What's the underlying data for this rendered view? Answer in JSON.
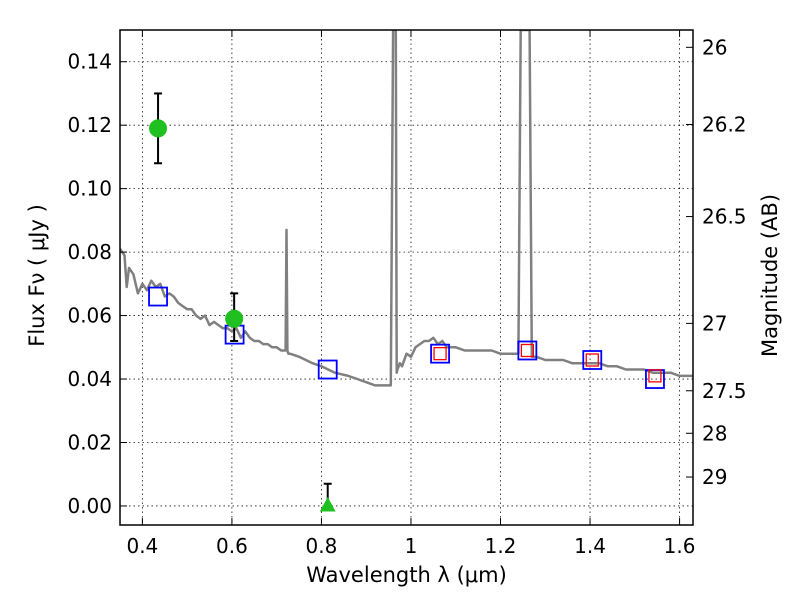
{
  "chart_data": {
    "type": "scatter",
    "xlabel": "Wavelength  λ (μm)",
    "ylabel": "Flux  Fν  ( μJy )",
    "ylabel_right": "Magnitude (AB)",
    "xlim": [
      0.35,
      1.63
    ],
    "ylim": [
      -0.006,
      0.15
    ],
    "x_ticks": [
      0.4,
      0.6,
      0.8,
      1.0,
      1.2,
      1.4,
      1.6
    ],
    "x_tick_labels": [
      "0.4",
      "0.6",
      "0.8",
      "1",
      "1.2",
      "1.4",
      "1.6"
    ],
    "y_ticks": [
      0.0,
      0.02,
      0.04,
      0.06,
      0.08,
      0.1,
      0.12,
      0.14
    ],
    "y_tick_labels": [
      "0.00",
      "0.02",
      "0.04",
      "0.06",
      "0.08",
      "0.10",
      "0.12",
      "0.14"
    ],
    "right_ticks": [
      {
        "label": "26",
        "mag": 26.0
      },
      {
        "label": "26.2",
        "mag": 26.2
      },
      {
        "label": "26.5",
        "mag": 26.5
      },
      {
        "label": "27",
        "mag": 27.0
      },
      {
        "label": "27.5",
        "mag": 27.5
      },
      {
        "label": "28",
        "mag": 28.0
      },
      {
        "label": "29",
        "mag": 29.0
      }
    ],
    "grid": true,
    "colors": {
      "spectrum": "#808080",
      "observed": "#1fc01f",
      "model_blue": "#0000ff",
      "model_red": "#ff0000",
      "errorbar": "#000000"
    },
    "spectrum": {
      "x": [
        0.35,
        0.36,
        0.365,
        0.37,
        0.38,
        0.39,
        0.4,
        0.41,
        0.42,
        0.43,
        0.44,
        0.45,
        0.46,
        0.47,
        0.48,
        0.49,
        0.5,
        0.51,
        0.52,
        0.53,
        0.54,
        0.55,
        0.56,
        0.57,
        0.58,
        0.59,
        0.6,
        0.61,
        0.62,
        0.63,
        0.64,
        0.65,
        0.66,
        0.67,
        0.68,
        0.69,
        0.7,
        0.71,
        0.72,
        0.722,
        0.724,
        0.726,
        0.728,
        0.73,
        0.75,
        0.78,
        0.8,
        0.83,
        0.86,
        0.88,
        0.9,
        0.92,
        0.94,
        0.955,
        0.96,
        0.962,
        0.964,
        0.966,
        0.968,
        0.97,
        0.975,
        0.98,
        0.99,
        1.0,
        1.01,
        1.02,
        1.03,
        1.04,
        1.05,
        1.06,
        1.07,
        1.08,
        1.1,
        1.12,
        1.14,
        1.16,
        1.18,
        1.2,
        1.22,
        1.24,
        1.245,
        1.25,
        1.26,
        1.265,
        1.27,
        1.28,
        1.3,
        1.32,
        1.34,
        1.36,
        1.38,
        1.4,
        1.42,
        1.44,
        1.46,
        1.48,
        1.5,
        1.52,
        1.54,
        1.56,
        1.58,
        1.6,
        1.63
      ],
      "y": [
        0.081,
        0.079,
        0.069,
        0.075,
        0.073,
        0.067,
        0.07,
        0.068,
        0.071,
        0.069,
        0.07,
        0.066,
        0.067,
        0.066,
        0.064,
        0.063,
        0.062,
        0.062,
        0.06,
        0.059,
        0.06,
        0.057,
        0.058,
        0.057,
        0.056,
        0.056,
        0.055,
        0.056,
        0.053,
        0.055,
        0.053,
        0.052,
        0.052,
        0.051,
        0.051,
        0.05,
        0.05,
        0.049,
        0.049,
        0.087,
        0.049,
        0.048,
        0.048,
        0.048,
        0.047,
        0.045,
        0.044,
        0.042,
        0.041,
        0.04,
        0.039,
        0.038,
        0.038,
        0.038,
        0.15,
        0.15,
        0.15,
        0.15,
        0.042,
        0.043,
        0.045,
        0.044,
        0.048,
        0.047,
        0.05,
        0.051,
        0.052,
        0.052,
        0.053,
        0.051,
        0.052,
        0.05,
        0.05,
        0.049,
        0.049,
        0.049,
        0.049,
        0.048,
        0.048,
        0.048,
        0.15,
        0.15,
        0.15,
        0.15,
        0.047,
        0.047,
        0.046,
        0.046,
        0.046,
        0.045,
        0.045,
        0.045,
        0.045,
        0.044,
        0.044,
        0.043,
        0.043,
        0.043,
        0.042,
        0.042,
        0.042,
        0.041,
        0.041
      ]
    },
    "observed": [
      {
        "x": 0.435,
        "y": 0.119,
        "yerr_low": 0.108,
        "yerr_high": 0.13,
        "marker": "circle"
      },
      {
        "x": 0.605,
        "y": 0.059,
        "yerr_low": 0.052,
        "yerr_high": 0.067,
        "marker": "circle"
      },
      {
        "x": 0.814,
        "y": 0.0,
        "yerr_low": 0.0,
        "yerr_high": 0.007,
        "marker": "triangle"
      }
    ],
    "model_photometry_blue": [
      {
        "x": 0.435,
        "y": 0.066
      },
      {
        "x": 0.606,
        "y": 0.054
      },
      {
        "x": 0.814,
        "y": 0.043
      },
      {
        "x": 1.065,
        "y": 0.048
      },
      {
        "x": 1.26,
        "y": 0.049
      },
      {
        "x": 1.405,
        "y": 0.046
      },
      {
        "x": 1.545,
        "y": 0.04
      }
    ],
    "model_photometry_red": [
      {
        "x": 1.065,
        "y": 0.048
      },
      {
        "x": 1.26,
        "y": 0.049
      },
      {
        "x": 1.405,
        "y": 0.046
      },
      {
        "x": 1.545,
        "y": 0.041
      }
    ]
  }
}
